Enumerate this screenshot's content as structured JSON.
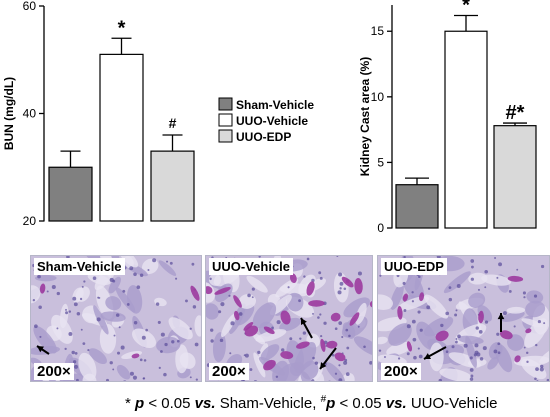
{
  "chart_data": [
    {
      "type": "bar",
      "ylabel": "BUN (mg/dL)",
      "ylim": [
        20,
        60
      ],
      "yticks": [
        20,
        40,
        60
      ],
      "categories": [
        "Sham-Vehicle",
        "UUO-Vehicle",
        "UUO-EDP"
      ],
      "values": [
        30,
        51,
        33
      ],
      "errors": [
        3,
        3,
        3
      ],
      "annotations": [
        "",
        "*",
        "#"
      ],
      "legend": [
        "Sham-Vehicle",
        "UUO-Vehicle",
        "UUO-EDP"
      ],
      "legend_placement": "right",
      "grid": false
    },
    {
      "type": "bar",
      "ylabel": "Kidney Cast area (%)",
      "ylim": [
        0,
        17
      ],
      "yticks": [
        0,
        5,
        10,
        15
      ],
      "categories": [
        "Sham-Vehicle",
        "UUO-Vehicle",
        "UUO-EDP"
      ],
      "values": [
        3.3,
        15,
        7.8
      ],
      "errors": [
        0.5,
        1.2,
        0.2
      ],
      "annotations": [
        "",
        "*",
        "#*"
      ],
      "grid": false
    }
  ],
  "colors": {
    "sham": "#808080",
    "uuo_vehicle": "#ffffff",
    "uuo_edp": "#d9d9d9",
    "tissue_bg": "#c9bfdc",
    "stain": "#9c3a9e"
  },
  "panels": [
    {
      "title": "Sham-Vehicle",
      "magnification": "200×"
    },
    {
      "title": "UUO-Vehicle",
      "magnification": "200×"
    },
    {
      "title": "UUO-EDP",
      "magnification": "200×"
    }
  ],
  "footnote": {
    "star": "*",
    "p1": "p",
    "lt1": "< 0.05",
    "vs1": "vs.",
    "ref1": "Sham-Vehicle,",
    "hash": "#",
    "p2": "p",
    "lt2": "< 0.05",
    "vs2": "vs.",
    "ref2": "UUO-Vehicle"
  }
}
